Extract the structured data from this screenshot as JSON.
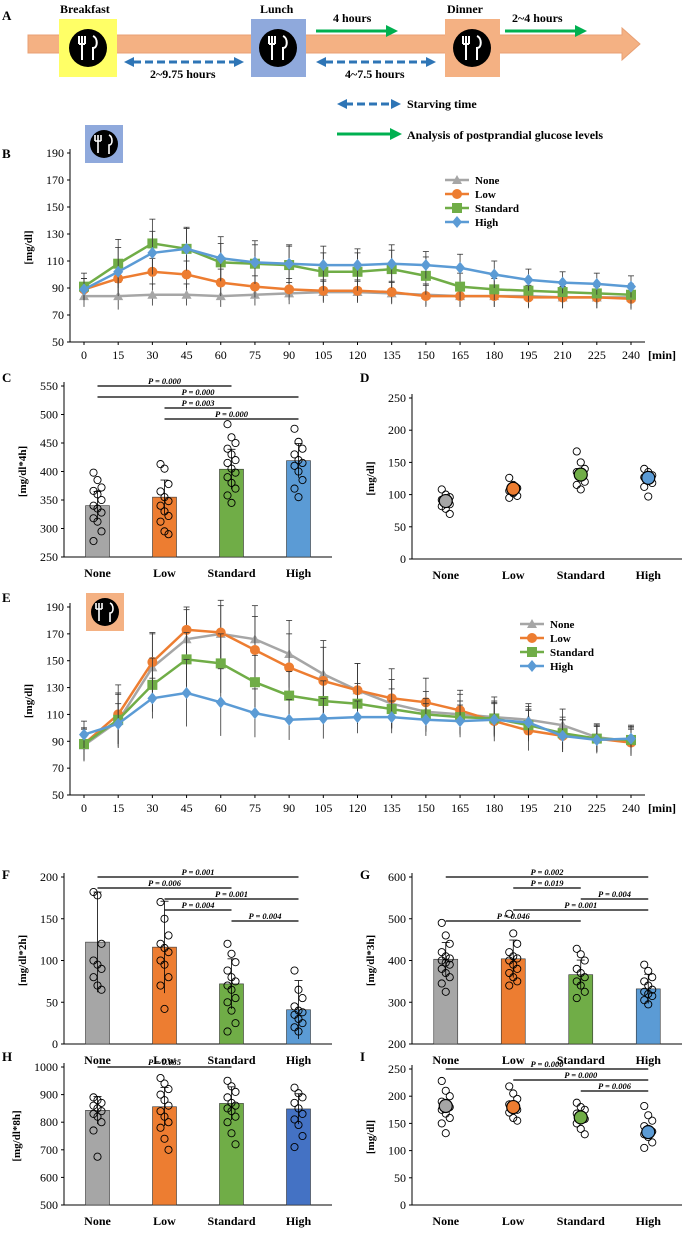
{
  "colors": {
    "None": "#a6a6a6",
    "Low": "#ed7d31",
    "Standard": "#70ad47",
    "High": "#5b9bd5",
    "HighBarI": "#4472c4",
    "arrow": "#f4b183",
    "breakfast": "#ffff66",
    "lunch": "#8fa9dc",
    "dinner": "#f4b183",
    "blueDash": "#2e75b6",
    "green": "#00b050"
  },
  "panelA": {
    "label": "A",
    "breakfast": "Breakfast",
    "lunch": "Lunch",
    "dinner": "Dinner",
    "gap1": "2~9.75 hours",
    "gap2": "4~7.5 hours",
    "after_lunch": "4 hours",
    "after_dinner": "2~4 hours",
    "legend_starving": "Starving time",
    "legend_analysis": "Analysis of postprandial glucose levels"
  },
  "chart_data": [
    {
      "panel": "B",
      "type": "line",
      "ylabel": "[mg/dl]",
      "xlabel": "[min]",
      "ylim": [
        50,
        190
      ],
      "yticks": [
        50,
        70,
        90,
        110,
        130,
        150,
        170,
        190
      ],
      "x": [
        0,
        15,
        30,
        45,
        60,
        75,
        90,
        105,
        120,
        135,
        150,
        165,
        180,
        195,
        210,
        225,
        240
      ],
      "legend": "top-right",
      "series": [
        {
          "name": "None",
          "marker": "triangle",
          "values": [
            84,
            84,
            85,
            85,
            84,
            85,
            86,
            87,
            87,
            86,
            85,
            84,
            84,
            84,
            83,
            83,
            83
          ],
          "err": [
            8,
            10,
            8,
            8,
            8,
            8,
            8,
            8,
            8,
            8,
            8,
            8,
            8,
            8,
            8,
            8,
            8
          ]
        },
        {
          "name": "Low",
          "marker": "circle",
          "values": [
            89,
            97,
            102,
            100,
            94,
            91,
            89,
            88,
            88,
            87,
            84,
            84,
            84,
            83,
            83,
            83,
            82
          ],
          "err": [
            8,
            10,
            10,
            10,
            10,
            8,
            8,
            8,
            8,
            8,
            8,
            8,
            8,
            8,
            8,
            8,
            8
          ]
        },
        {
          "name": "Standard",
          "marker": "square",
          "values": [
            91,
            108,
            123,
            119,
            109,
            108,
            107,
            102,
            102,
            104,
            99,
            91,
            89,
            88,
            87,
            86,
            85
          ],
          "err": [
            10,
            18,
            18,
            15,
            14,
            14,
            14,
            14,
            14,
            14,
            14,
            10,
            8,
            8,
            8,
            8,
            8
          ]
        },
        {
          "name": "High",
          "marker": "diamond",
          "values": [
            89,
            102,
            116,
            119,
            112,
            109,
            108,
            107,
            107,
            108,
            107,
            105,
            100,
            96,
            94,
            93,
            91
          ],
          "err": [
            8,
            18,
            16,
            16,
            16,
            16,
            14,
            14,
            12,
            14,
            10,
            10,
            10,
            8,
            8,
            8,
            8
          ]
        }
      ]
    },
    {
      "panel": "C",
      "type": "bar",
      "ylabel": "[mg/dl*4h]",
      "ylim": [
        250,
        550
      ],
      "yticks": [
        250,
        300,
        350,
        400,
        450,
        500,
        550
      ],
      "categories": [
        "None",
        "Low",
        "Standard",
        "High"
      ],
      "values": [
        340,
        355,
        404,
        419
      ],
      "err": [
        25,
        30,
        35,
        30
      ],
      "points": [
        [
          398,
          385,
          372,
          366,
          360,
          350,
          340,
          335,
          328,
          318,
          312,
          295,
          278
        ],
        [
          413,
          405,
          378,
          365,
          355,
          348,
          340,
          330,
          322,
          312,
          295,
          290
        ],
        [
          483,
          460,
          450,
          440,
          430,
          420,
          415,
          405,
          398,
          390,
          380,
          370,
          358,
          345
        ],
        [
          475,
          452,
          440,
          430,
          420,
          415,
          410,
          400,
          385,
          370,
          355
        ]
      ],
      "brackets": [
        {
          "from": 0,
          "to": 2,
          "label": "P = 0.000"
        },
        {
          "from": 0,
          "to": 3,
          "label": "P = 0.000"
        },
        {
          "from": 1,
          "to": 2,
          "label": "P = 0.003"
        },
        {
          "from": 1,
          "to": 3,
          "label": "P = 0.000"
        }
      ]
    },
    {
      "panel": "D",
      "type": "scatter",
      "ylabel": "[mg/dl]",
      "ylim": [
        0,
        250
      ],
      "yticks": [
        0,
        50,
        100,
        150,
        200,
        250
      ],
      "categories": [
        "None",
        "Low",
        "Standard",
        "High"
      ],
      "means": [
        90,
        109,
        131,
        126
      ],
      "points": [
        [
          108,
          100,
          96,
          92,
          88,
          85,
          82,
          78,
          70
        ],
        [
          126,
          115,
          110,
          106,
          102,
          98,
          95
        ],
        [
          167,
          150,
          140,
          135,
          128,
          120,
          115,
          108
        ],
        [
          140,
          135,
          130,
          127,
          122,
          118,
          112,
          97
        ]
      ]
    },
    {
      "panel": "E",
      "type": "line",
      "ylabel": "[mg/dl]",
      "xlabel": "[min]",
      "ylim": [
        50,
        190
      ],
      "yticks": [
        50,
        70,
        90,
        110,
        130,
        150,
        170,
        190
      ],
      "x": [
        0,
        15,
        30,
        45,
        60,
        75,
        90,
        105,
        120,
        135,
        150,
        165,
        180,
        195,
        210,
        225,
        240
      ],
      "legend": "top-right",
      "series": [
        {
          "name": "None",
          "marker": "triangle",
          "values": [
            87,
            105,
            145,
            166,
            170,
            166,
            155,
            140,
            128,
            118,
            112,
            110,
            108,
            106,
            102,
            93,
            90
          ],
          "err": [
            12,
            20,
            25,
            22,
            25,
            25,
            25,
            25,
            20,
            18,
            15,
            15,
            15,
            12,
            12,
            10,
            10
          ]
        },
        {
          "name": "Low",
          "marker": "circle",
          "values": [
            88,
            110,
            149,
            173,
            171,
            158,
            145,
            135,
            128,
            122,
            119,
            113,
            105,
            98,
            94,
            92,
            89
          ],
          "err": [
            12,
            22,
            22,
            17,
            20,
            25,
            25,
            25,
            20,
            22,
            18,
            15,
            15,
            15,
            12,
            10,
            10
          ]
        },
        {
          "name": "Standard",
          "marker": "square",
          "values": [
            88,
            106,
            132,
            151,
            148,
            134,
            124,
            120,
            118,
            114,
            110,
            108,
            107,
            102,
            96,
            92,
            91
          ],
          "err": [
            12,
            20,
            20,
            20,
            22,
            20,
            18,
            15,
            15,
            15,
            12,
            12,
            12,
            12,
            12,
            10,
            10
          ]
        },
        {
          "name": "High",
          "marker": "diamond",
          "values": [
            95,
            103,
            122,
            126,
            119,
            111,
            106,
            107,
            108,
            108,
            106,
            105,
            106,
            104,
            94,
            91,
            92
          ],
          "err": [
            10,
            15,
            15,
            25,
            25,
            18,
            15,
            15,
            12,
            12,
            12,
            12,
            12,
            12,
            12,
            10,
            10
          ]
        }
      ]
    },
    {
      "panel": "F",
      "type": "bar",
      "ylabel": "[mg/dl*2h]",
      "ylim": [
        0,
        200
      ],
      "yticks": [
        0,
        50,
        100,
        150,
        200
      ],
      "categories": [
        "None",
        "Low",
        "Standard",
        "High"
      ],
      "values": [
        122,
        116,
        72,
        41
      ],
      "err": [
        60,
        55,
        30,
        35
      ],
      "points": [
        [
          182,
          178,
          120,
          100,
          95,
          90,
          80,
          70,
          65
        ],
        [
          170,
          150,
          130,
          120,
          115,
          110,
          100,
          95,
          80,
          70,
          42
        ],
        [
          120,
          108,
          98,
          88,
          80,
          75,
          70,
          65,
          55,
          50,
          40,
          25,
          15
        ],
        [
          88,
          65,
          55,
          45,
          40,
          38,
          35,
          30,
          25,
          20,
          15
        ]
      ],
      "brackets": [
        {
          "from": 0,
          "to": 3,
          "label": "P = 0.001"
        },
        {
          "from": 0,
          "to": 2,
          "label": "P = 0.006"
        },
        {
          "from": 1,
          "to": 3,
          "label": "P = 0.001"
        },
        {
          "from": 1,
          "to": 2,
          "label": "P = 0.004"
        },
        {
          "from": 2,
          "to": 3,
          "label": "P = 0.004"
        }
      ]
    },
    {
      "panel": "G",
      "type": "bar",
      "ylabel": "[mg/dl*3h]",
      "ylim": [
        200,
        600
      ],
      "yticks": [
        200,
        300,
        400,
        500,
        600
      ],
      "categories": [
        "None",
        "Low",
        "Standard",
        "High"
      ],
      "values": [
        403,
        404,
        366,
        332
      ],
      "err": [
        40,
        45,
        35,
        35
      ],
      "points": [
        [
          490,
          460,
          440,
          420,
          410,
          405,
          400,
          395,
          390,
          380,
          370,
          360,
          345,
          325
        ],
        [
          512,
          465,
          440,
          420,
          410,
          405,
          400,
          390,
          380,
          370,
          360,
          350,
          340
        ],
        [
          428,
          415,
          400,
          380,
          370,
          360,
          350,
          340,
          325,
          310
        ],
        [
          390,
          375,
          360,
          350,
          340,
          330,
          325,
          320,
          315,
          305,
          295
        ]
      ],
      "brackets": [
        {
          "from": 0,
          "to": 3,
          "label": "P = 0.002"
        },
        {
          "from": 1,
          "to": 2,
          "label": "P = 0.019"
        },
        {
          "from": 2,
          "to": 3,
          "label": "P = 0.004"
        },
        {
          "from": 1,
          "to": 3,
          "label": "P = 0.001"
        },
        {
          "from": 0,
          "to": 2,
          "label": "P = 0.046"
        }
      ]
    },
    {
      "panel": "H",
      "type": "bar",
      "ylabel": "[mg/dl*8h]",
      "ylim": [
        500,
        1000
      ],
      "yticks": [
        500,
        600,
        700,
        800,
        900,
        1000
      ],
      "categories": [
        "None",
        "Low",
        "Standard",
        "High"
      ],
      "values": [
        843,
        856,
        868,
        848
      ],
      "err": [
        50,
        70,
        60,
        55
      ],
      "points": [
        [
          890,
          880,
          870,
          860,
          850,
          840,
          830,
          820,
          800,
          770,
          675
        ],
        [
          960,
          940,
          920,
          900,
          880,
          860,
          840,
          820,
          800,
          780,
          740,
          700
        ],
        [
          950,
          930,
          910,
          890,
          870,
          860,
          850,
          840,
          820,
          800,
          760,
          720
        ],
        [
          925,
          905,
          890,
          870,
          850,
          830,
          810,
          790,
          750,
          710
        ]
      ],
      "brackets": [
        {
          "from": 0,
          "to": 2,
          "label": "P = 0.035"
        }
      ]
    },
    {
      "panel": "I",
      "type": "scatter",
      "ylabel": "[mg/dl]",
      "ylim": [
        0,
        250
      ],
      "yticks": [
        0,
        50,
        100,
        150,
        200,
        250
      ],
      "categories": [
        "None",
        "Low",
        "Standard",
        "High"
      ],
      "means": [
        182,
        180,
        161,
        134
      ],
      "points": [
        [
          228,
          210,
          200,
          190,
          185,
          180,
          175,
          168,
          160,
          150,
          132
        ],
        [
          218,
          205,
          195,
          185,
          180,
          175,
          170,
          160,
          155
        ],
        [
          188,
          180,
          175,
          168,
          162,
          158,
          150,
          140,
          130
        ],
        [
          182,
          165,
          155,
          145,
          140,
          135,
          130,
          125,
          115,
          105
        ]
      ],
      "brackets": [
        {
          "from": 0,
          "to": 3,
          "label": "P = 0.000"
        },
        {
          "from": 1,
          "to": 3,
          "label": "P = 0.000"
        },
        {
          "from": 2,
          "to": 3,
          "label": "P = 0.006"
        }
      ]
    }
  ]
}
